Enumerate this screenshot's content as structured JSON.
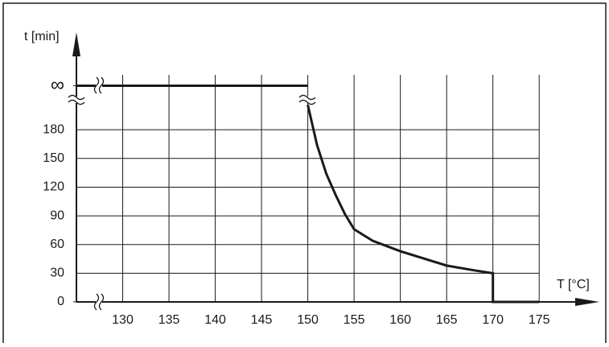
{
  "chart_data": {
    "type": "line",
    "y_label": "t [min]",
    "x_label": "T [°C]",
    "series": [
      {
        "color": "#1a1a1a",
        "x": [
          125,
          150
        ],
        "values": [
          226,
          226
        ]
      },
      {
        "color": "#1a1a1a",
        "x": [
          150,
          151,
          152,
          153,
          154,
          155,
          157,
          160,
          162,
          165,
          168,
          170,
          170,
          175
        ],
        "values": [
          206,
          164,
          134,
          112,
          92,
          76,
          64,
          53,
          47,
          38,
          33,
          30,
          0,
          0
        ]
      }
    ],
    "xlim": [
      125,
      181.5
    ],
    "ylim": [
      0,
      282
    ],
    "xticks": [
      130,
      135,
      140,
      145,
      150,
      155,
      160,
      165,
      170,
      175
    ],
    "yticks": [
      0,
      30,
      60,
      90,
      120,
      150,
      180,
      {
        "value": 226,
        "label": "∞"
      }
    ],
    "grid": true
  }
}
